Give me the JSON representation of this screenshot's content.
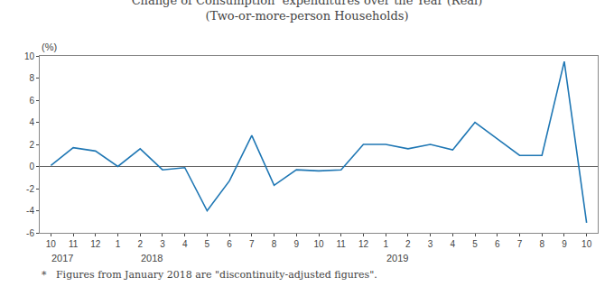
{
  "chart_data": {
    "type": "line",
    "title": "Change of Consumption  expenditures over the Year (Real)",
    "subtitle": "(Two-or-more-person Households)",
    "ylabel": "(%)",
    "footnote": "*   Figures from January 2018 are \"discontinuity-adjusted figures\".",
    "categories": [
      "10",
      "11",
      "12",
      "1",
      "2",
      "3",
      "4",
      "5",
      "6",
      "7",
      "8",
      "9",
      "10",
      "11",
      "12",
      "1",
      "2",
      "3",
      "4",
      "5",
      "6",
      "7",
      "8",
      "9",
      "10"
    ],
    "values": [
      0.1,
      1.7,
      1.4,
      0.0,
      1.6,
      -0.3,
      -0.1,
      -4.0,
      -1.3,
      2.8,
      -1.7,
      -0.3,
      -0.4,
      -0.3,
      2.0,
      2.0,
      1.6,
      2.0,
      1.5,
      4.0,
      2.5,
      1.0,
      1.0,
      9.5,
      -5.1
    ],
    "annotations": [
      {
        "text": "2017",
        "x": 0.5
      },
      {
        "text": "2018",
        "x": 4.5
      },
      {
        "text": "2019",
        "x": 15.5
      }
    ],
    "ylim": [
      -6,
      10
    ],
    "yticks": [
      -6,
      -4,
      -2,
      0,
      2,
      4,
      6,
      8,
      10
    ],
    "grid": false
  }
}
